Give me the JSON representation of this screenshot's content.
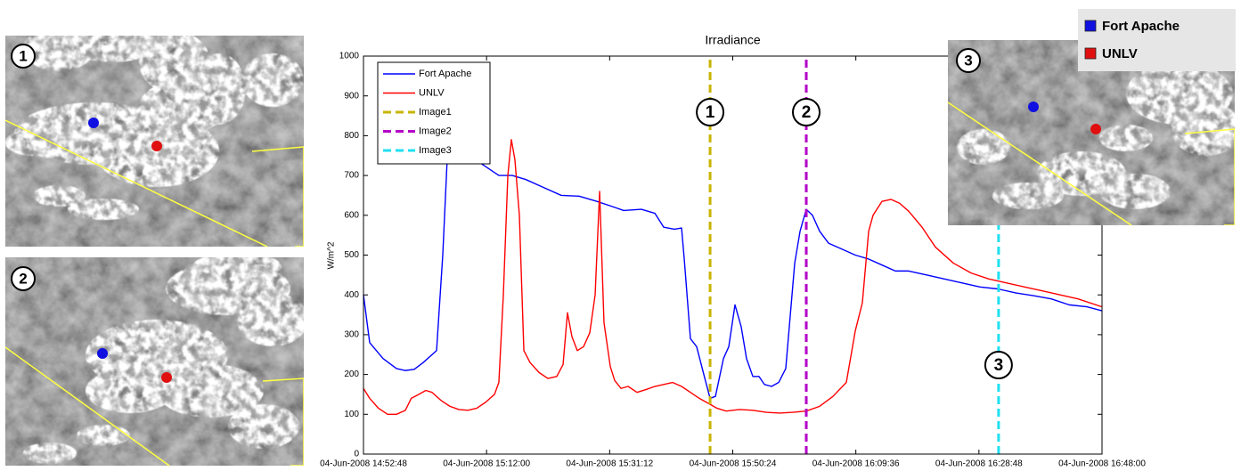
{
  "chart_data": {
    "type": "line",
    "title": "Irradiance",
    "y_label": "W/m^2",
    "xlim": [
      "2008-06-04 14:52:48",
      "2008-06-04 16:48:00"
    ],
    "xticks": [
      {
        "value": "2008-06-04 14:52:48",
        "label": "04-Jun-2008 14:52:48"
      },
      {
        "value": "2008-06-04 15:12:00",
        "label": "04-Jun-2008 15:12:00"
      },
      {
        "value": "2008-06-04 15:31:12",
        "label": "04-Jun-2008 15:31:12"
      },
      {
        "value": "2008-06-04 15:50:24",
        "label": "04-Jun-2008 15:50:24"
      },
      {
        "value": "2008-06-04 16:09:36",
        "label": "04-Jun-2008 16:09:36"
      },
      {
        "value": "2008-06-04 16:28:48",
        "label": "04-Jun-2008 16:28:48"
      },
      {
        "value": "2008-06-04 16:48:00",
        "label": "04-Jun-2008 16:48:00"
      }
    ],
    "ylim": [
      0,
      1000
    ],
    "yticks": [
      0,
      100,
      200,
      300,
      400,
      500,
      600,
      700,
      800,
      900,
      1000
    ],
    "grid": false,
    "legend": "upper left",
    "series": [
      {
        "name": "Fort Apache",
        "color": "#0000ff",
        "x": [
          "2008-06-04 14:52:48",
          "2008-06-04 14:53:46",
          "2008-06-04 14:55:51",
          "2008-06-04 14:57:57",
          "2008-06-04 14:59:20",
          "2008-06-04 15:00:43",
          "2008-06-04 15:02:07",
          "2008-06-04 15:04:12",
          "2008-06-04 15:05:10",
          "2008-06-04 15:06:00",
          "2008-06-04 15:08:22",
          "2008-06-04 15:11:09",
          "2008-06-04 15:13:55",
          "2008-06-04 15:16:00",
          "2008-06-04 15:18:06",
          "2008-06-04 15:20:52",
          "2008-06-04 15:23:39",
          "2008-06-04 15:26:26",
          "2008-06-04 15:29:13",
          "2008-06-04 15:31:59",
          "2008-06-04 15:33:23",
          "2008-06-04 15:36:09",
          "2008-06-04 15:38:15",
          "2008-06-04 15:39:38",
          "2008-06-04 15:41:18",
          "2008-06-04 15:42:25",
          "2008-06-04 15:42:50",
          "2008-06-04 15:43:48",
          "2008-06-04 15:44:46",
          "2008-06-04 15:45:53",
          "2008-06-04 15:46:52",
          "2008-06-04 15:47:42",
          "2008-06-04 15:48:57",
          "2008-06-04 15:49:47",
          "2008-06-04 15:50:45",
          "2008-06-04 15:51:43",
          "2008-06-04 15:52:33",
          "2008-06-04 15:53:32",
          "2008-06-04 15:54:30",
          "2008-06-04 15:55:20",
          "2008-06-04 15:56:27",
          "2008-06-04 15:57:34",
          "2008-06-04 15:58:40",
          "2008-06-04 16:00:04",
          "2008-06-04 16:00:54",
          "2008-06-04 16:01:52",
          "2008-06-04 16:02:50",
          "2008-06-04 16:03:57",
          "2008-06-04 16:05:20",
          "2008-06-04 16:07:25",
          "2008-06-04 16:09:31",
          "2008-06-04 16:11:36",
          "2008-06-04 16:13:41",
          "2008-06-04 16:15:46",
          "2008-06-04 16:17:51",
          "2008-06-04 16:20:38",
          "2008-06-04 16:23:24",
          "2008-06-04 16:26:11",
          "2008-06-04 16:28:58",
          "2008-06-04 16:31:45",
          "2008-06-04 16:34:31",
          "2008-06-04 16:37:18",
          "2008-06-04 16:40:05",
          "2008-06-04 16:42:52",
          "2008-06-04 16:45:38",
          "2008-06-04 16:48:00"
        ],
        "values": [
          400,
          280,
          240,
          215,
          210,
          213,
          230,
          260,
          500,
          790,
          760,
          730,
          700,
          700,
          690,
          670,
          650,
          648,
          635,
          620,
          612,
          615,
          605,
          570,
          565,
          568,
          490,
          290,
          270,
          200,
          140,
          145,
          240,
          270,
          375,
          320,
          240,
          195,
          195,
          175,
          170,
          180,
          215,
          480,
          560,
          615,
          600,
          560,
          530,
          515,
          500,
          490,
          475,
          460,
          460,
          450,
          440,
          430,
          420,
          415,
          405,
          398,
          390,
          375,
          370,
          360
        ]
      },
      {
        "name": "UNLV",
        "color": "#ff0000",
        "x": [
          "2008-06-04 14:52:48",
          "2008-06-04 14:53:46",
          "2008-06-04 14:55:09",
          "2008-06-04 14:56:33",
          "2008-06-04 14:57:57",
          "2008-06-04 14:59:20",
          "2008-06-04 15:00:15",
          "2008-06-04 15:01:25",
          "2008-06-04 15:02:32",
          "2008-06-04 15:03:30",
          "2008-06-04 15:04:53",
          "2008-06-04 15:06:17",
          "2008-06-04 15:07:40",
          "2008-06-04 15:09:04",
          "2008-06-04 15:10:27",
          "2008-06-04 15:11:50",
          "2008-06-04 15:13:14",
          "2008-06-04 15:13:55",
          "2008-06-04 15:14:37",
          "2008-06-04 15:15:19",
          "2008-06-04 15:15:52",
          "2008-06-04 15:16:25",
          "2008-06-04 15:17:07",
          "2008-06-04 15:17:49",
          "2008-06-04 15:18:47",
          "2008-06-04 15:20:11",
          "2008-06-04 15:21:34",
          "2008-06-04 15:22:57",
          "2008-06-04 15:23:56",
          "2008-06-04 15:24:37",
          "2008-06-04 15:25:19",
          "2008-06-04 15:26:09",
          "2008-06-04 15:27:08",
          "2008-06-04 15:28:06",
          "2008-06-04 15:28:56",
          "2008-06-04 15:29:38",
          "2008-06-04 15:30:19",
          "2008-06-04 15:31:18",
          "2008-06-04 15:31:59",
          "2008-06-04 15:32:58",
          "2008-06-04 15:34:05",
          "2008-06-04 15:35:28",
          "2008-06-04 15:36:51",
          "2008-06-04 15:38:15",
          "2008-06-04 15:39:38",
          "2008-06-04 15:41:01",
          "2008-06-04 15:42:25",
          "2008-06-04 15:43:48",
          "2008-06-04 15:45:11",
          "2008-06-04 15:46:52",
          "2008-06-04 15:47:58",
          "2008-06-04 15:49:22",
          "2008-06-04 15:51:27",
          "2008-06-04 15:53:32",
          "2008-06-04 15:55:37",
          "2008-06-04 15:57:42",
          "2008-06-04 15:59:47",
          "2008-06-04 16:01:52",
          "2008-06-04 16:03:57",
          "2008-06-04 16:06:02",
          "2008-06-04 16:08:07",
          "2008-06-04 16:09:31",
          "2008-06-04 16:10:37",
          "2008-06-04 16:11:36",
          "2008-06-04 16:12:17",
          "2008-06-04 16:13:41",
          "2008-06-04 16:15:04",
          "2008-06-04 16:16:27",
          "2008-06-04 16:17:51",
          "2008-06-04 16:19:56",
          "2008-06-04 16:22:01",
          "2008-06-04 16:24:48",
          "2008-06-04 16:27:34",
          "2008-06-04 16:30:21",
          "2008-06-04 16:33:08",
          "2008-06-04 16:35:55",
          "2008-06-04 16:38:42",
          "2008-06-04 16:41:28",
          "2008-06-04 16:44:15",
          "2008-06-04 16:48:00"
        ],
        "values": [
          165,
          140,
          115,
          100,
          100,
          110,
          140,
          150,
          160,
          155,
          135,
          120,
          112,
          110,
          115,
          130,
          150,
          180,
          400,
          700,
          790,
          740,
          600,
          260,
          230,
          205,
          190,
          195,
          225,
          355,
          295,
          260,
          270,
          305,
          400,
          660,
          330,
          220,
          185,
          165,
          170,
          155,
          162,
          170,
          175,
          180,
          170,
          155,
          140,
          125,
          115,
          108,
          112,
          110,
          105,
          103,
          105,
          108,
          120,
          145,
          180,
          310,
          380,
          560,
          600,
          635,
          640,
          630,
          610,
          570,
          520,
          480,
          455,
          440,
          430,
          420,
          410,
          400,
          390,
          370
        ]
      },
      {
        "name": "Image1",
        "color": "#c8b400",
        "style": "dashed",
        "x": [
          "2008-06-04 15:46:52",
          "2008-06-04 15:46:52"
        ],
        "values": [
          0,
          1000
        ]
      },
      {
        "name": "Image2",
        "color": "#b400c8",
        "style": "dashed",
        "x": [
          "2008-06-04 16:01:52",
          "2008-06-04 16:01:52"
        ],
        "values": [
          0,
          1000
        ]
      },
      {
        "name": "Image3",
        "color": "#20e0f0",
        "style": "dashed",
        "x": [
          "2008-06-04 16:31:52",
          "2008-06-04 16:31:52"
        ],
        "values": [
          0,
          1000
        ]
      }
    ],
    "annotations": [
      "1",
      "2",
      "3"
    ]
  },
  "images": [
    {
      "label": "1"
    },
    {
      "label": "2"
    },
    {
      "label": "3"
    }
  ],
  "image_legend": [
    {
      "name": "Fort Apache",
      "color": "#1010e0"
    },
    {
      "name": "UNLV",
      "color": "#e01010"
    }
  ]
}
